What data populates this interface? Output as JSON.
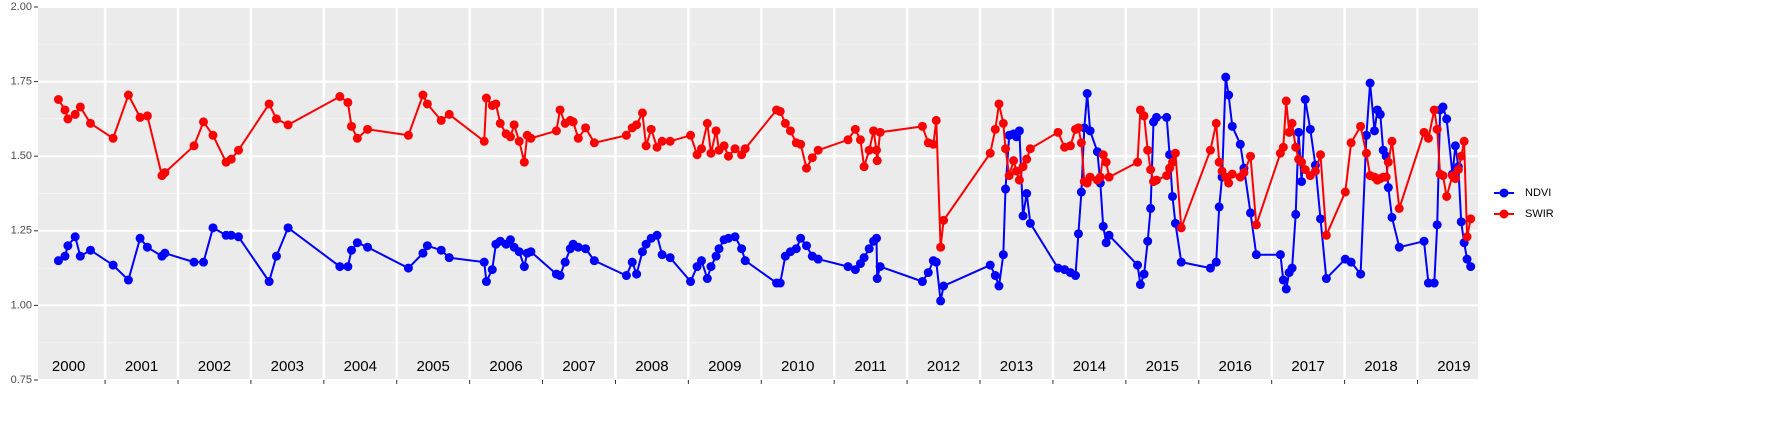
{
  "chart_data": {
    "type": "line",
    "x": [
      2000.36,
      2000.45,
      2000.49,
      2000.59,
      2000.66,
      2000.8,
      2001.11,
      2001.32,
      2001.48,
      2001.58,
      2001.78,
      2001.82,
      2002.22,
      2002.35,
      2002.48,
      2002.66,
      2002.73,
      2002.83,
      2003.25,
      2003.35,
      2003.51,
      2004.22,
      2004.33,
      2004.38,
      2004.46,
      2004.6,
      2005.16,
      2005.36,
      2005.42,
      2005.61,
      2005.72,
      2006.2,
      2006.23,
      2006.31,
      2006.36,
      2006.42,
      2006.5,
      2006.56,
      2006.61,
      2006.68,
      2006.75,
      2006.79,
      2006.84,
      2007.19,
      2007.24,
      2007.31,
      2007.38,
      2007.42,
      2007.49,
      2007.59,
      2007.71,
      2008.15,
      2008.23,
      2008.29,
      2008.37,
      2008.42,
      2008.49,
      2008.57,
      2008.64,
      2008.75,
      2009.03,
      2009.12,
      2009.18,
      2009.26,
      2009.31,
      2009.38,
      2009.42,
      2009.49,
      2009.55,
      2009.64,
      2009.73,
      2009.78,
      2010.21,
      2010.26,
      2010.33,
      2010.4,
      2010.48,
      2010.54,
      2010.62,
      2010.7,
      2010.78,
      2011.19,
      2011.29,
      2011.36,
      2011.41,
      2011.48,
      2011.54,
      2011.58,
      2011.59,
      2011.63,
      2012.21,
      2012.29,
      2012.36,
      2012.4,
      2012.46,
      2012.5,
      2013.14,
      2013.21,
      2013.26,
      2013.32,
      2013.35,
      2013.4,
      2013.46,
      2013.5,
      2013.54,
      2013.59,
      2013.64,
      2013.69,
      2014.07,
      2014.16,
      2014.24,
      2014.31,
      2014.35,
      2014.39,
      2014.43,
      2014.47,
      2014.51,
      2014.61,
      2014.65,
      2014.69,
      2014.73,
      2014.77,
      2015.16,
      2015.2,
      2015.25,
      2015.3,
      2015.34,
      2015.38,
      2015.42,
      2015.56,
      2015.6,
      2015.64,
      2015.68,
      2015.76,
      2016.16,
      2016.24,
      2016.28,
      2016.32,
      2016.37,
      2016.41,
      2016.46,
      2016.57,
      2016.62,
      2016.71,
      2016.79,
      2017.12,
      2017.16,
      2017.2,
      2017.24,
      2017.28,
      2017.33,
      2017.37,
      2017.41,
      2017.46,
      2017.53,
      2017.6,
      2017.67,
      2017.75,
      2018.01,
      2018.09,
      2018.22,
      2018.3,
      2018.35,
      2018.41,
      2018.45,
      2018.49,
      2018.53,
      2018.57,
      2018.6,
      2018.65,
      2018.75,
      2019.09,
      2019.15,
      2019.23,
      2019.27,
      2019.31,
      2019.35,
      2019.4,
      2019.48,
      2019.52,
      2019.56,
      2019.6,
      2019.64,
      2019.68,
      2019.73
    ],
    "series": [
      {
        "name": "NDVI",
        "color": "#0000ff",
        "values": [
          1.15,
          1.165,
          1.2,
          1.23,
          1.165,
          1.185,
          1.135,
          1.085,
          1.225,
          1.195,
          1.165,
          1.175,
          1.145,
          1.145,
          1.26,
          1.235,
          1.235,
          1.23,
          1.08,
          1.165,
          1.26,
          1.13,
          1.13,
          1.185,
          1.21,
          1.195,
          1.125,
          1.175,
          1.2,
          1.185,
          1.16,
          1.145,
          1.08,
          1.12,
          1.205,
          1.215,
          1.205,
          1.22,
          1.195,
          1.18,
          1.13,
          1.175,
          1.18,
          1.105,
          1.1,
          1.145,
          1.19,
          1.205,
          1.195,
          1.19,
          1.15,
          1.1,
          1.145,
          1.105,
          1.18,
          1.205,
          1.225,
          1.235,
          1.17,
          1.16,
          1.08,
          1.13,
          1.15,
          1.09,
          1.13,
          1.165,
          1.19,
          1.22,
          1.225,
          1.23,
          1.19,
          1.15,
          1.075,
          1.075,
          1.165,
          1.18,
          1.19,
          1.225,
          1.2,
          1.165,
          1.155,
          1.13,
          1.12,
          1.14,
          1.16,
          1.19,
          1.215,
          1.225,
          1.09,
          1.13,
          1.08,
          1.11,
          1.15,
          1.145,
          1.015,
          1.065,
          1.135,
          1.1,
          1.065,
          1.17,
          1.39,
          1.57,
          1.575,
          1.565,
          1.585,
          1.3,
          1.375,
          1.275,
          1.125,
          1.12,
          1.11,
          1.1,
          1.24,
          1.38,
          1.595,
          1.71,
          1.585,
          1.515,
          1.41,
          1.265,
          1.21,
          1.235,
          1.135,
          1.07,
          1.105,
          1.215,
          1.325,
          1.615,
          1.63,
          1.63,
          1.505,
          1.365,
          1.275,
          1.145,
          1.125,
          1.145,
          1.33,
          1.43,
          1.765,
          1.705,
          1.6,
          1.54,
          1.46,
          1.31,
          1.17,
          1.17,
          1.085,
          1.055,
          1.11,
          1.125,
          1.305,
          1.58,
          1.415,
          1.69,
          1.59,
          1.47,
          1.29,
          1.09,
          1.155,
          1.145,
          1.105,
          1.57,
          1.745,
          1.585,
          1.655,
          1.64,
          1.52,
          1.5,
          1.395,
          1.295,
          1.195,
          1.215,
          1.075,
          1.075,
          1.27,
          1.655,
          1.665,
          1.625,
          1.44,
          1.535,
          1.465,
          1.28,
          1.21,
          1.155,
          1.13
        ]
      },
      {
        "name": "SWIR",
        "color": "#ff0000",
        "values": [
          1.69,
          1.655,
          1.625,
          1.64,
          1.665,
          1.61,
          1.56,
          1.705,
          1.63,
          1.635,
          1.435,
          1.445,
          1.535,
          1.615,
          1.57,
          1.48,
          1.49,
          1.52,
          1.675,
          1.625,
          1.605,
          1.7,
          1.68,
          1.6,
          1.56,
          1.59,
          1.57,
          1.705,
          1.675,
          1.62,
          1.64,
          1.55,
          1.695,
          1.67,
          1.675,
          1.61,
          1.575,
          1.565,
          1.605,
          1.55,
          1.48,
          1.57,
          1.56,
          1.585,
          1.655,
          1.61,
          1.62,
          1.615,
          1.56,
          1.595,
          1.545,
          1.57,
          1.595,
          1.605,
          1.645,
          1.535,
          1.59,
          1.53,
          1.55,
          1.55,
          1.57,
          1.505,
          1.525,
          1.61,
          1.51,
          1.585,
          1.52,
          1.535,
          1.5,
          1.525,
          1.505,
          1.525,
          1.655,
          1.65,
          1.61,
          1.585,
          1.545,
          1.54,
          1.46,
          1.495,
          1.52,
          1.555,
          1.59,
          1.555,
          1.465,
          1.52,
          1.585,
          1.52,
          1.485,
          1.58,
          1.6,
          1.545,
          1.54,
          1.62,
          1.195,
          1.285,
          1.51,
          1.59,
          1.675,
          1.61,
          1.525,
          1.435,
          1.485,
          1.45,
          1.42,
          1.465,
          1.49,
          1.525,
          1.58,
          1.53,
          1.535,
          1.59,
          1.595,
          1.545,
          1.415,
          1.41,
          1.43,
          1.42,
          1.43,
          1.505,
          1.48,
          1.43,
          1.48,
          1.655,
          1.635,
          1.52,
          1.455,
          1.415,
          1.42,
          1.435,
          1.46,
          1.48,
          1.51,
          1.26,
          1.52,
          1.61,
          1.48,
          1.45,
          1.43,
          1.41,
          1.44,
          1.43,
          1.445,
          1.5,
          1.27,
          1.51,
          1.53,
          1.685,
          1.58,
          1.61,
          1.53,
          1.49,
          1.48,
          1.455,
          1.435,
          1.45,
          1.505,
          1.235,
          1.38,
          1.545,
          1.6,
          1.51,
          1.435,
          1.43,
          1.42,
          1.425,
          1.43,
          1.43,
          1.48,
          1.55,
          1.325,
          1.58,
          1.56,
          1.655,
          1.59,
          1.44,
          1.435,
          1.365,
          1.435,
          1.425,
          1.455,
          1.5,
          1.55,
          1.23,
          1.29
        ]
      }
    ],
    "xlim": [
      2000.08,
      2019.83
    ],
    "xticks": [
      {
        "value": 2000.5,
        "label": "2000"
      },
      {
        "value": 2001.5,
        "label": "2001"
      },
      {
        "value": 2002.5,
        "label": "2002"
      },
      {
        "value": 2003.5,
        "label": "2003"
      },
      {
        "value": 2004.5,
        "label": "2004"
      },
      {
        "value": 2005.5,
        "label": "2005"
      },
      {
        "value": 2006.5,
        "label": "2006"
      },
      {
        "value": 2007.5,
        "label": "2007"
      },
      {
        "value": 2008.5,
        "label": "2008"
      },
      {
        "value": 2009.5,
        "label": "2009"
      },
      {
        "value": 2010.5,
        "label": "2010"
      },
      {
        "value": 2011.5,
        "label": "2011"
      },
      {
        "value": 2012.5,
        "label": "2012"
      },
      {
        "value": 2013.5,
        "label": "2013"
      },
      {
        "value": 2014.5,
        "label": "2014"
      },
      {
        "value": 2015.5,
        "label": "2015"
      },
      {
        "value": 2016.5,
        "label": "2016"
      },
      {
        "value": 2017.5,
        "label": "2017"
      },
      {
        "value": 2018.5,
        "label": "2018"
      },
      {
        "value": 2019.5,
        "label": "2019"
      }
    ],
    "xgrid": [
      2001,
      2002,
      2003,
      2004,
      2005,
      2006,
      2007,
      2008,
      2009,
      2010,
      2011,
      2012,
      2013,
      2014,
      2015,
      2016,
      2017,
      2018,
      2019
    ],
    "ylim": [
      0.75,
      2.0
    ],
    "yticks": [
      {
        "value": 0.75,
        "label": "0.75"
      },
      {
        "value": 1.0,
        "label": "1.00"
      },
      {
        "value": 1.25,
        "label": "1.25"
      },
      {
        "value": 1.5,
        "label": "1.50"
      },
      {
        "value": 1.75,
        "label": "1.75"
      },
      {
        "value": 2.0,
        "label": "2.00"
      }
    ],
    "grid": true,
    "legend": "right"
  }
}
